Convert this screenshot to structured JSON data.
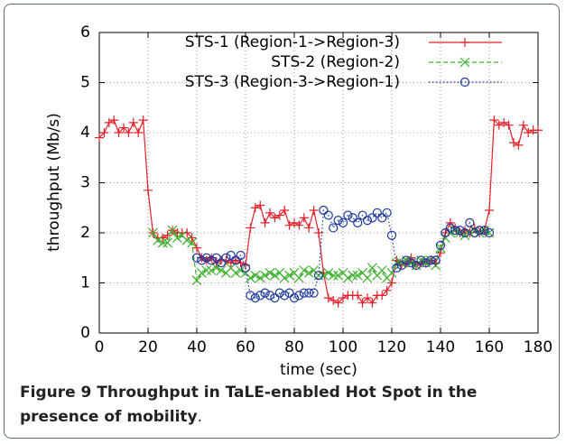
{
  "chart_data": {
    "type": "line",
    "xlabel": "time (sec)",
    "ylabel": "throughput (Mb/s)",
    "caption": "Figure 9 Throughput in TaLE-enabled Hot Spot in the presence of mobility",
    "caption_end": ".",
    "x": [
      0,
      2,
      4,
      6,
      8,
      10,
      12,
      14,
      16,
      18,
      20,
      22,
      24,
      26,
      28,
      30,
      32,
      34,
      36,
      38,
      40,
      42,
      44,
      46,
      48,
      50,
      52,
      54,
      56,
      58,
      60,
      62,
      64,
      66,
      68,
      70,
      72,
      74,
      76,
      78,
      80,
      82,
      84,
      86,
      88,
      90,
      92,
      94,
      96,
      98,
      100,
      102,
      104,
      106,
      108,
      110,
      112,
      114,
      116,
      118,
      120,
      122,
      124,
      126,
      128,
      130,
      132,
      134,
      136,
      138,
      140,
      142,
      144,
      146,
      148,
      150,
      152,
      154,
      156,
      158,
      160,
      162,
      164,
      166,
      168,
      170,
      172,
      174,
      176,
      178,
      180
    ],
    "series": [
      {
        "name": "STS-1 (Region-1->Region-3)",
        "color": "#e3202a",
        "dash": "solid",
        "marker": "plus",
        "values": [
          3.9,
          4.0,
          4.2,
          4.25,
          4.0,
          4.1,
          4.0,
          4.2,
          4.0,
          4.25,
          2.85,
          2.0,
          1.9,
          1.9,
          1.95,
          2.05,
          2.0,
          2.0,
          2.0,
          1.9,
          1.7,
          1.5,
          1.45,
          1.5,
          1.4,
          1.45,
          1.45,
          1.4,
          1.45,
          1.4,
          1.35,
          2.1,
          2.5,
          2.55,
          2.2,
          2.4,
          2.3,
          2.35,
          2.45,
          2.15,
          2.2,
          2.15,
          2.3,
          2.1,
          2.45,
          2.0,
          1.2,
          0.7,
          0.65,
          0.6,
          0.7,
          0.75,
          0.75,
          0.75,
          0.6,
          0.7,
          0.6,
          0.75,
          0.75,
          0.85,
          1.0,
          1.45,
          1.35,
          1.4,
          1.5,
          1.35,
          1.4,
          1.4,
          1.45,
          1.4,
          1.6,
          2.0,
          2.2,
          2.1,
          2.0,
          2.05,
          2.0,
          2.1,
          2.0,
          2.05,
          2.45,
          4.25,
          4.15,
          4.2,
          4.15,
          3.8,
          3.75,
          4.15,
          4.0,
          4.05,
          4.05
        ]
      },
      {
        "name": "STS-2 (Region-2)",
        "color": "#3cb02c",
        "dash": "dashed",
        "marker": "cross",
        "values": [
          null,
          null,
          null,
          null,
          null,
          null,
          null,
          null,
          null,
          null,
          null,
          2.0,
          1.85,
          1.8,
          1.8,
          2.05,
          1.9,
          1.95,
          1.85,
          1.8,
          1.05,
          1.2,
          1.25,
          1.25,
          1.3,
          1.25,
          1.2,
          1.3,
          1.2,
          1.25,
          1.2,
          1.1,
          1.15,
          1.1,
          1.15,
          1.2,
          1.15,
          1.2,
          1.1,
          1.15,
          1.2,
          1.1,
          1.25,
          1.2,
          1.25,
          1.15,
          1.15,
          1.2,
          1.15,
          1.15,
          1.2,
          1.1,
          1.15,
          1.15,
          1.2,
          1.1,
          1.3,
          1.15,
          1.25,
          1.1,
          1.2,
          1.4,
          1.4,
          1.45,
          1.4,
          1.35,
          1.45,
          1.4,
          1.45,
          1.35,
          1.7,
          1.9,
          2.0,
          2.05,
          2.0,
          1.95,
          2.0,
          2.05,
          2.0,
          2.05,
          2.0,
          null,
          null,
          null,
          null,
          null,
          null,
          null,
          null,
          null,
          null
        ]
      },
      {
        "name": "STS-3 (Region-3->Region-1)",
        "color": "#1f3a9e",
        "dash": "dotted",
        "marker": "circle",
        "values": [
          null,
          null,
          null,
          null,
          null,
          null,
          null,
          null,
          null,
          null,
          null,
          null,
          null,
          null,
          null,
          null,
          null,
          null,
          null,
          null,
          1.5,
          1.45,
          1.5,
          1.45,
          1.5,
          1.4,
          1.5,
          1.55,
          1.45,
          1.55,
          1.3,
          0.75,
          0.7,
          0.75,
          0.8,
          0.75,
          0.7,
          0.8,
          0.75,
          0.8,
          0.7,
          0.75,
          0.8,
          0.8,
          0.8,
          1.15,
          2.45,
          2.35,
          2.1,
          2.25,
          2.2,
          2.35,
          2.3,
          2.2,
          2.35,
          2.25,
          2.3,
          2.4,
          2.3,
          2.4,
          1.95,
          1.3,
          1.35,
          1.45,
          1.4,
          1.35,
          1.45,
          1.4,
          1.45,
          1.45,
          1.75,
          2.0,
          2.1,
          2.05,
          2.05,
          2.0,
          2.2,
          2.0,
          2.05,
          2.05,
          2.0,
          null,
          null,
          null,
          null,
          null,
          null,
          null,
          null,
          null,
          null
        ]
      }
    ],
    "xlim": [
      0,
      180
    ],
    "xticks": [
      0,
      20,
      40,
      60,
      80,
      100,
      120,
      140,
      160,
      180
    ],
    "ylim": [
      0,
      6
    ],
    "yticks": [
      0,
      1,
      2,
      3,
      4,
      5,
      6
    ],
    "grid": true,
    "legend": "top"
  }
}
